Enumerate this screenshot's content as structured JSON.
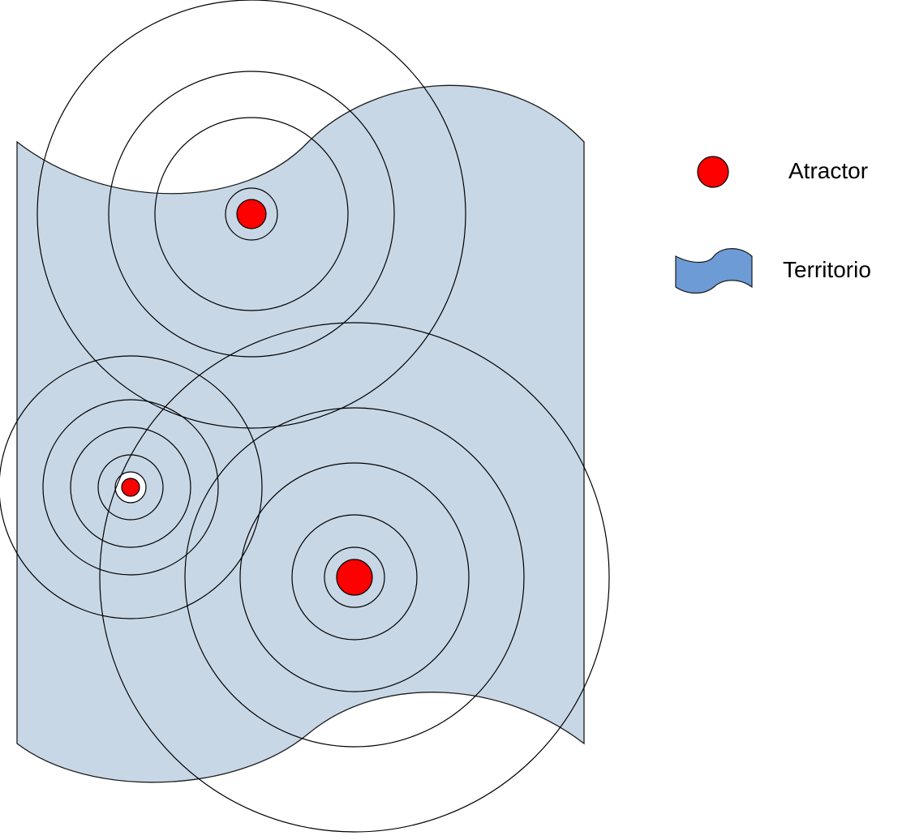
{
  "legend": {
    "attractor_label": "Atractor",
    "territory_label": "Territorio"
  },
  "colors": {
    "territory_fill": "#c8d7e6",
    "territory_stroke": "#1a1a1a",
    "legend_territory_fill": "#6d9bd6",
    "attractor_fill": "#ff0000",
    "ring_stroke": "#000000"
  },
  "attractors": [
    {
      "name": "top",
      "rings": 4
    },
    {
      "name": "left",
      "rings": 6
    },
    {
      "name": "bottom-right",
      "rings": 5
    }
  ]
}
